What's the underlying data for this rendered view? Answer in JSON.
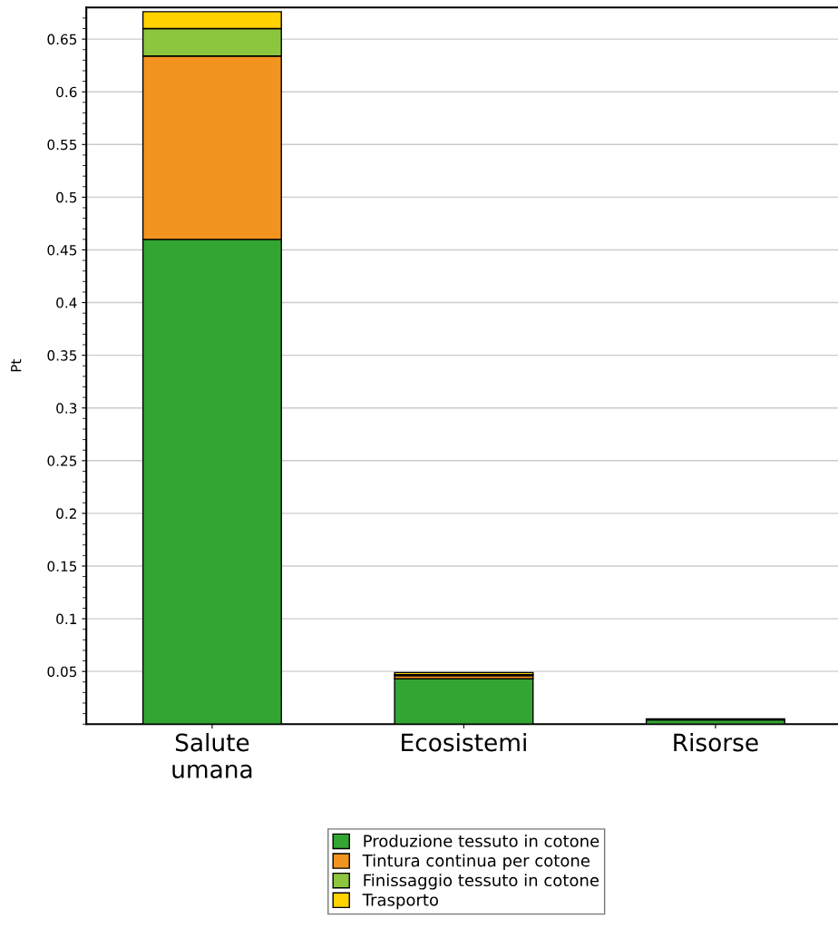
{
  "chart_data": {
    "type": "bar",
    "stacked": true,
    "ylabel": "Pt",
    "categories": [
      "Salute\numana",
      "Ecosistemi",
      "Risorse"
    ],
    "series": [
      {
        "name": "Produzione tessuto in cotone",
        "color": "#33a532",
        "values": [
          0.46,
          0.043,
          0.004
        ]
      },
      {
        "name": "Tintura continua per cotone",
        "color": "#f39420",
        "values": [
          0.174,
          0.003,
          null
        ]
      },
      {
        "name": "Finissaggio tessuto in cotone",
        "color": "#8cc63f",
        "values": [
          0.026,
          0.001,
          null
        ]
      },
      {
        "name": "Trasporto",
        "color": "#ffd200",
        "values": [
          0.016,
          0.002,
          0.001
        ]
      }
    ],
    "ylim": [
      0,
      0.68
    ],
    "yticks": [
      0.05,
      0.1,
      0.15,
      0.2,
      0.25,
      0.3,
      0.35,
      0.4,
      0.45,
      0.5,
      0.55,
      0.6,
      0.65
    ],
    "grid": "y",
    "legend": "bottom"
  }
}
